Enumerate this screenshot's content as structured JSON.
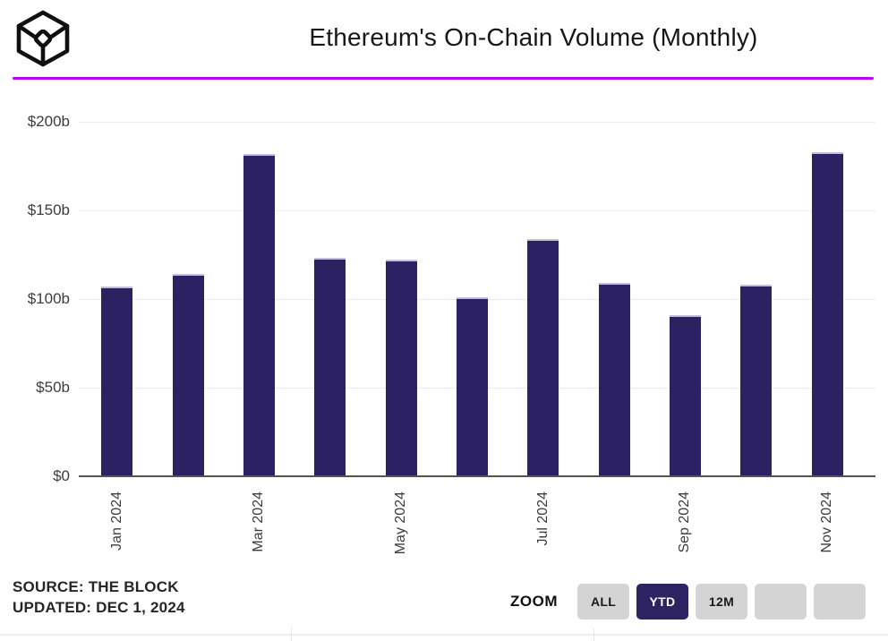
{
  "header": {
    "title": "Ethereum's On-Chain Volume (Monthly)",
    "logo": "the-block-cube-logo"
  },
  "colors": {
    "bar": "#2c2263",
    "bar_top_edge": "#c4c0d6",
    "divider_magenta": "#bf00f0",
    "axis_line": "#56524e",
    "gridline": "#ececec",
    "button_active_bg": "#2d2362",
    "button_inactive_bg": "#d4d4d4"
  },
  "chart_data": {
    "type": "bar",
    "title": "Ethereum's On-Chain Volume (Monthly)",
    "unit": "billions USD",
    "categories": [
      "Jan 2024",
      "Feb 2024",
      "Mar 2024",
      "Apr 2024",
      "May 2024",
      "Jun 2024",
      "Jul 2024",
      "Aug 2024",
      "Sep 2024",
      "Oct 2024",
      "Nov 2024"
    ],
    "values": [
      107,
      114,
      182,
      123,
      122,
      101,
      134,
      109,
      91,
      108,
      183
    ],
    "ytick_labels": [
      "$0",
      "$50b",
      "$100b",
      "$150b",
      "$200b"
    ],
    "ytick_values": [
      0,
      50,
      100,
      150,
      200
    ],
    "ylim": [
      0,
      200
    ],
    "xtick_shown": [
      "Jan 2024",
      "Mar 2024",
      "May 2024",
      "Jul 2024",
      "Sep 2024",
      "Nov 2024"
    ],
    "grid": true,
    "legend": false
  },
  "footer": {
    "source_line1": "SOURCE: THE BLOCK",
    "source_line2": "UPDATED: DEC 1, 2024",
    "zoom_label": "ZOOM",
    "zoom_buttons": [
      {
        "label": "ALL",
        "active": false
      },
      {
        "label": "YTD",
        "active": true
      },
      {
        "label": "12M",
        "active": false
      },
      {
        "label": "",
        "active": false
      },
      {
        "label": "",
        "active": false
      }
    ]
  }
}
